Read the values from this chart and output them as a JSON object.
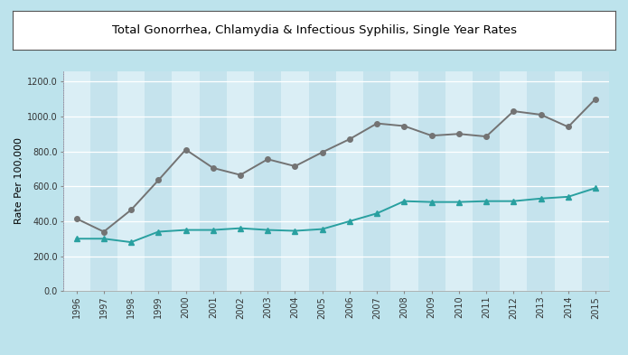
{
  "title": "Total Gonorrhea, Chlamydia & Infectious Syphilis, Single Year Rates",
  "ylabel": "Rate Per 100,000",
  "years": [
    1996,
    1997,
    1998,
    1999,
    2000,
    2001,
    2002,
    2003,
    2004,
    2005,
    2006,
    2007,
    2008,
    2009,
    2010,
    2011,
    2012,
    2013,
    2014,
    2015
  ],
  "series_gray": [
    415,
    340,
    465,
    635,
    810,
    705,
    665,
    755,
    715,
    795,
    870,
    960,
    945,
    890,
    900,
    885,
    1030,
    1010,
    940,
    1100
  ],
  "series_teal": [
    300,
    300,
    280,
    340,
    350,
    350,
    360,
    350,
    345,
    355,
    400,
    445,
    515,
    510,
    510,
    515,
    515,
    530,
    540,
    590
  ],
  "color_gray": "#737373",
  "color_teal": "#29a0a0",
  "bg_outer": "#bde3ec",
  "bg_inner_light": "#daeef5",
  "bg_inner_dark": "#c5e3ed",
  "ylim": [
    0,
    1260
  ],
  "yticks": [
    0.0,
    200.0,
    400.0,
    600.0,
    800.0,
    1000.0,
    1200.0
  ],
  "marker_size": 4,
  "line_width": 1.4,
  "title_box_color": "white",
  "title_fontsize": 9.5,
  "tick_fontsize": 7,
  "ylabel_fontsize": 8
}
